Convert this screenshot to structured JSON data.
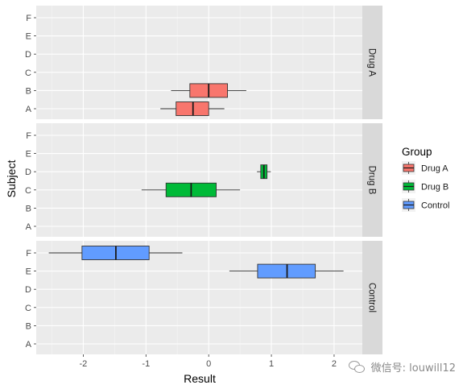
{
  "chart_data": {
    "type": "boxplot",
    "orientation": "horizontal",
    "xlabel": "Result",
    "ylabel": "Subject",
    "xlim": [
      -2.75,
      2.45
    ],
    "x_ticks": [
      -2,
      -1,
      0,
      1,
      2
    ],
    "x_tick_labels": [
      "-2",
      "-1",
      "0",
      "1",
      "2"
    ],
    "categories": [
      "A",
      "B",
      "C",
      "D",
      "E",
      "F"
    ],
    "facets": [
      "Drug A",
      "Drug B",
      "Control"
    ],
    "grid": true,
    "legend": {
      "title": "Group",
      "position": "right",
      "entries": [
        {
          "label": "Drug A",
          "color": "#F8766D"
        },
        {
          "label": "Drug B",
          "color": "#00BA38"
        },
        {
          "label": "Control",
          "color": "#619CFF"
        }
      ]
    },
    "boxes": [
      {
        "facet": "Drug A",
        "subject": "B",
        "group": "Drug A",
        "min": -0.6,
        "q1": -0.3,
        "median": 0.0,
        "q3": 0.3,
        "max": 0.6
      },
      {
        "facet": "Drug A",
        "subject": "A",
        "group": "Drug A",
        "min": -0.77,
        "q1": -0.52,
        "median": -0.25,
        "q3": 0.0,
        "max": 0.25
      },
      {
        "facet": "Drug B",
        "subject": "D",
        "group": "Drug B",
        "min": 0.77,
        "q1": 0.83,
        "median": 0.88,
        "q3": 0.93,
        "max": 0.99
      },
      {
        "facet": "Drug B",
        "subject": "C",
        "group": "Drug B",
        "min": -1.07,
        "q1": -0.68,
        "median": -0.28,
        "q3": 0.12,
        "max": 0.5
      },
      {
        "facet": "Control",
        "subject": "F",
        "group": "Control",
        "min": -2.55,
        "q1": -2.02,
        "median": -1.48,
        "q3": -0.95,
        "max": -0.42
      },
      {
        "facet": "Control",
        "subject": "E",
        "group": "Control",
        "min": 0.33,
        "q1": 0.78,
        "median": 1.25,
        "q3": 1.7,
        "max": 2.15
      }
    ]
  },
  "watermark": {
    "text": "微信号: louwill12",
    "icon": "wechat-icon"
  }
}
